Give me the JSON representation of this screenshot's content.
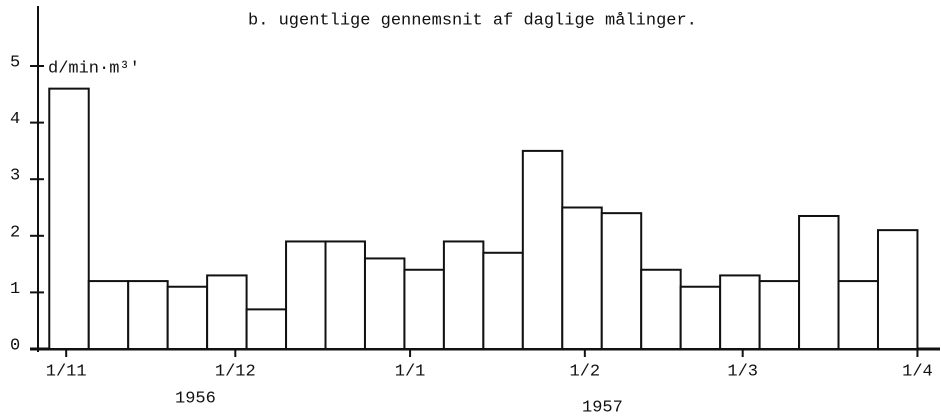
{
  "chart_data": {
    "type": "histogram",
    "title": "b.  ugentlige gennemsnit af daglige målinger.",
    "y_label": "d/min·m³'",
    "annotations": [
      "1956",
      "1957"
    ],
    "bins": [
      -3,
      4,
      11,
      18,
      25,
      32,
      39,
      46,
      53,
      60,
      67,
      74,
      81,
      88,
      95,
      102,
      109,
      116,
      123,
      130,
      137,
      144,
      151
    ],
    "values": [
      4.6,
      1.2,
      1.2,
      1.1,
      1.3,
      0.7,
      1.9,
      1.9,
      1.6,
      1.4,
      1.9,
      1.7,
      3.5,
      2.5,
      2.4,
      1.4,
      1.1,
      1.3,
      1.2,
      2.35,
      1.2,
      2.1
    ],
    "color": "#ffffff",
    "xlim": [
      -5,
      155
    ],
    "xticks": [
      {
        "value": 0,
        "label": "1/11"
      },
      {
        "value": 30,
        "label": "1/12"
      },
      {
        "value": 61,
        "label": "1/1"
      },
      {
        "value": 92,
        "label": "1/2"
      },
      {
        "value": 120,
        "label": "1/3"
      },
      {
        "value": 151,
        "label": "1/4"
      }
    ],
    "ylim": [
      0,
      6
    ],
    "yticks": [
      0,
      1,
      2,
      3,
      4,
      5
    ],
    "grid": false
  }
}
